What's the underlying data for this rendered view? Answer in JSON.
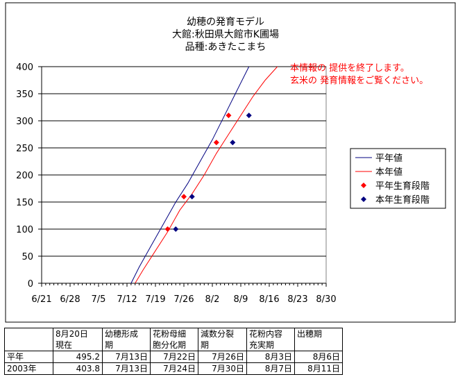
{
  "chart_data": {
    "type": "line",
    "title_lines": [
      "幼穂の発育モデル",
      "大館:秋田県大館市K圃場",
      "品種:あきたこまち"
    ],
    "x_tick_labels": [
      "6/21",
      "6/28",
      "7/5",
      "7/12",
      "7/19",
      "7/26",
      "8/2",
      "8/9",
      "8/16",
      "8/23",
      "8/30"
    ],
    "x_tick_days": [
      0,
      7,
      14,
      21,
      28,
      35,
      42,
      49,
      56,
      63,
      70
    ],
    "y_tick_labels": [
      "0",
      "50",
      "100",
      "150",
      "200",
      "250",
      "300",
      "350",
      "400"
    ],
    "ylim": [
      0,
      400
    ],
    "xlim": [
      0,
      70
    ],
    "grid": "horizontal",
    "legend_position": "right",
    "series": [
      {
        "name": "平年値",
        "kind": "line",
        "color": "#000080",
        "points": [
          [
            22,
            0
          ],
          [
            24,
            30
          ],
          [
            27,
            70
          ],
          [
            30,
            110
          ],
          [
            33,
            150
          ],
          [
            36,
            185
          ],
          [
            39,
            225
          ],
          [
            42,
            265
          ],
          [
            45,
            310
          ],
          [
            48,
            355
          ],
          [
            51,
            400
          ]
        ]
      },
      {
        "name": "本年値",
        "kind": "line",
        "color": "#ff0000",
        "points": [
          [
            23,
            0
          ],
          [
            25,
            25
          ],
          [
            28,
            60
          ],
          [
            31,
            95
          ],
          [
            34,
            135
          ],
          [
            37,
            165
          ],
          [
            40,
            200
          ],
          [
            43,
            240
          ],
          [
            46,
            275
          ],
          [
            49,
            310
          ],
          [
            52,
            345
          ],
          [
            55,
            375
          ],
          [
            58,
            400
          ]
        ]
      },
      {
        "name": "平年生育段階",
        "kind": "marker",
        "color": "#ff0000",
        "points": [
          [
            31,
            100
          ],
          [
            35,
            160
          ],
          [
            43,
            260
          ],
          [
            46,
            310
          ]
        ]
      },
      {
        "name": "本年生育段階",
        "kind": "marker",
        "color": "#000080",
        "points": [
          [
            33,
            100
          ],
          [
            37,
            160
          ],
          [
            47,
            260
          ],
          [
            51,
            310
          ]
        ]
      }
    ],
    "annotation": {
      "lines": [
        "本情報の 提供を終了します。",
        "玄米の 発育情報をご覧ください。"
      ],
      "color": "#ff0000"
    }
  },
  "table": {
    "header": [
      "",
      "8月20日\n現在",
      "幼穂形成\n期",
      "花粉母細\n胞分化期",
      "減数分裂\n期",
      "花粉内容\n充実期",
      "出穂期"
    ],
    "rows": [
      [
        "平年",
        "495.2",
        "7月13日",
        "7月22日",
        "7月26日",
        "8月3日",
        "8月6日"
      ],
      [
        "2003年",
        "403.8",
        "7月13日",
        "7月24日",
        "7月30日",
        "8月7日",
        "8月11日"
      ]
    ]
  }
}
